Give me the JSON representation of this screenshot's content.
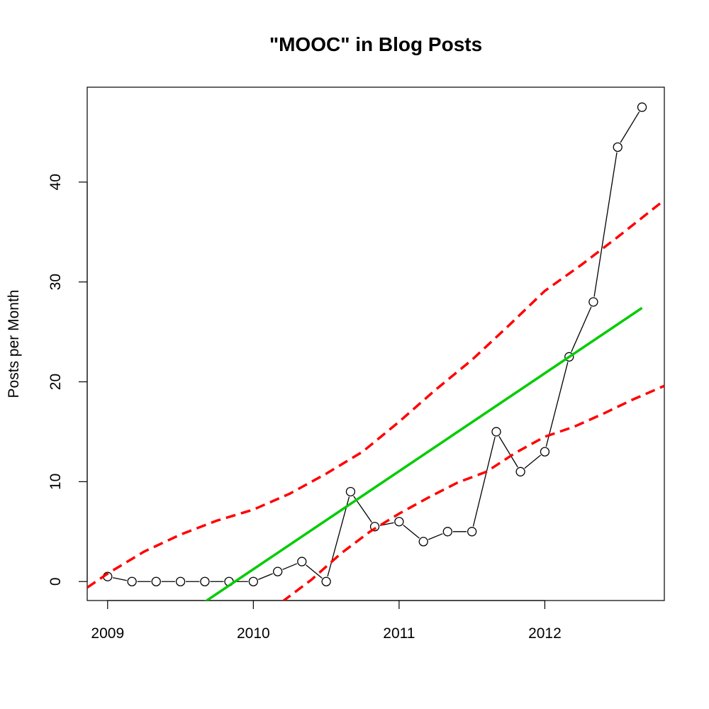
{
  "chart_data": {
    "type": "line",
    "title": "\"MOOC\" in Blog Posts",
    "xlabel": "",
    "ylabel": "Posts per Month",
    "xlim": [
      2008.86,
      2012.82
    ],
    "ylim": [
      -1.9,
      49.5
    ],
    "x_ticks": [
      2009,
      2010,
      2011,
      2012
    ],
    "x_tick_labels": [
      "2009",
      "2010",
      "2011",
      "2012"
    ],
    "y_ticks": [
      0,
      10,
      20,
      30,
      40
    ],
    "y_tick_labels": [
      "0",
      "10",
      "20",
      "30",
      "40"
    ],
    "grid": false,
    "legend": "none",
    "series": [
      {
        "kind": "observed",
        "style": "line-with-open-circles",
        "color": "#000000",
        "x": [
          2009.0,
          2009.167,
          2009.333,
          2009.5,
          2009.667,
          2009.833,
          2010.0,
          2010.167,
          2010.333,
          2010.5,
          2010.667,
          2010.833,
          2011.0,
          2011.167,
          2011.333,
          2011.5,
          2011.667,
          2011.833,
          2012.0,
          2012.167,
          2012.333,
          2012.5,
          2012.667
        ],
        "y": [
          0.5,
          0,
          0,
          0,
          0,
          0,
          0,
          1,
          2,
          0,
          9,
          5.5,
          6,
          4,
          5,
          5,
          15,
          11,
          13,
          22.5,
          28,
          43.5,
          47.5
        ]
      },
      {
        "kind": "fit",
        "style": "solid",
        "color": "#00cc00",
        "x": [
          2009.65,
          2012.667
        ],
        "y": [
          -2.2,
          27.4
        ]
      },
      {
        "kind": "upper-bound",
        "style": "dashed",
        "color": "#ff0000",
        "x": [
          2008.86,
          2009.0,
          2009.25,
          2009.5,
          2009.75,
          2010.0,
          2010.25,
          2010.5,
          2010.75,
          2011.0,
          2011.25,
          2011.5,
          2011.75,
          2012.0,
          2012.25,
          2012.5,
          2012.82
        ],
        "y": [
          -0.6,
          0.8,
          3.0,
          4.7,
          6.1,
          7.2,
          8.8,
          10.8,
          13.0,
          16.0,
          19.2,
          22.2,
          25.6,
          29.1,
          31.7,
          34.5,
          38.2
        ]
      },
      {
        "kind": "lower-bound",
        "style": "dashed",
        "color": "#ff0000",
        "x": [
          2010.2,
          2010.4,
          2010.6,
          2010.8,
          2011.0,
          2011.2,
          2011.4,
          2011.6,
          2011.8,
          2012.0,
          2012.2,
          2012.4,
          2012.6,
          2012.82
        ],
        "y": [
          -2.0,
          0.2,
          2.8,
          5.0,
          6.8,
          8.4,
          9.9,
          11.0,
          12.9,
          14.5,
          15.5,
          16.8,
          18.2,
          19.6
        ]
      }
    ]
  }
}
